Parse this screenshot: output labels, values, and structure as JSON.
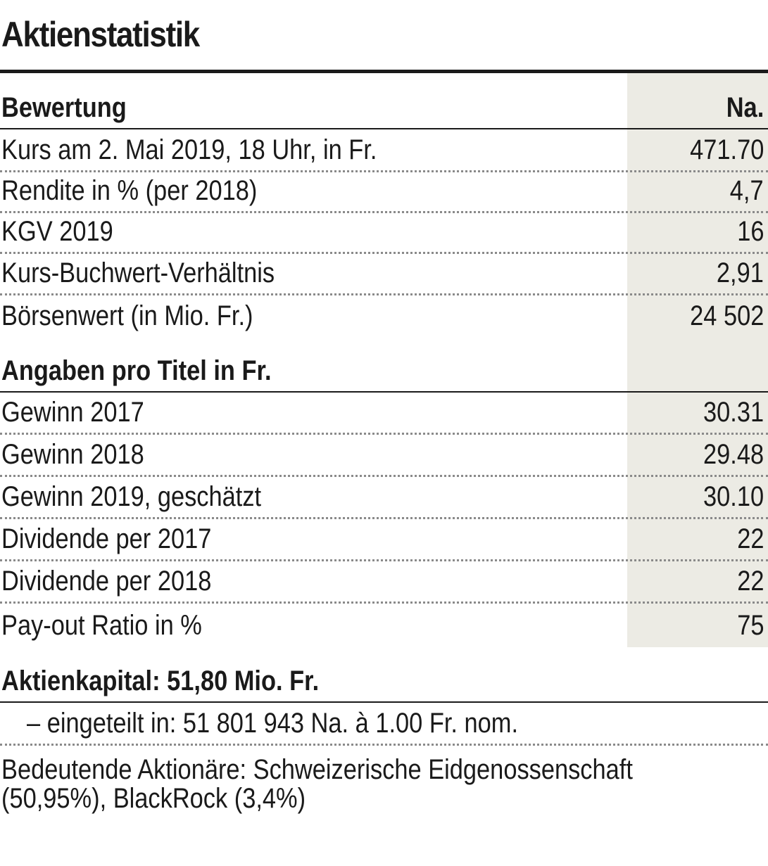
{
  "title": "Aktienstatistik",
  "column_header": "Na.",
  "sections": {
    "bewertung": {
      "heading": "Bewertung",
      "rows": [
        {
          "label": "Kurs am 2. Mai 2019, 18 Uhr, in Fr.",
          "value": "471.70"
        },
        {
          "label": "Rendite in % (per 2018)",
          "value": "4,7"
        },
        {
          "label": "KGV 2019",
          "value": "16"
        },
        {
          "label": "Kurs-Buchwert-Verhältnis",
          "value": "2,91"
        },
        {
          "label": "Börsenwert (in Mio. Fr.)",
          "value": "24 502"
        }
      ]
    },
    "angaben": {
      "heading": "Angaben pro Titel in Fr.",
      "rows": [
        {
          "label": "Gewinn 2017",
          "value": "30.31"
        },
        {
          "label": "Gewinn 2018",
          "value": "29.48"
        },
        {
          "label": "Gewinn 2019, geschätzt",
          "value": "30.10"
        },
        {
          "label": "Dividende per 2017",
          "value": "22"
        },
        {
          "label": "Dividende per 2018",
          "value": "22"
        },
        {
          "label": "Pay-out Ratio in %",
          "value": "75"
        }
      ]
    }
  },
  "aktienkapital": {
    "heading": "Aktienkapital: 51,80 Mio. Fr.",
    "detail": "– eingeteilt in: 51 801 943 Na. à 1.00 Fr. nom."
  },
  "aktionaere": {
    "line1": "Bedeutende Aktionäre: Schweizerische Eidgenossenschaft",
    "line2": "(50,95%), BlackRock (3,4%)"
  }
}
